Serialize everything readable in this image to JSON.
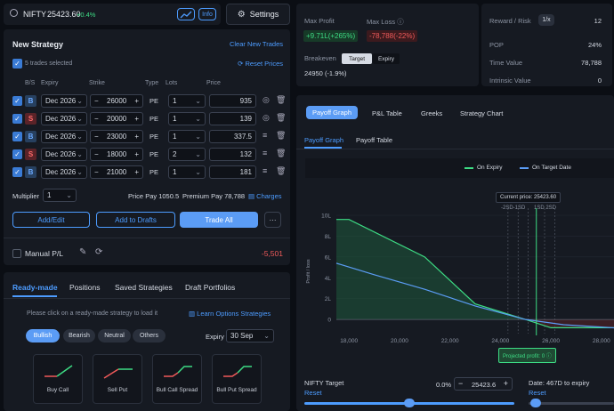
{
  "top": {
    "symbol": "NIFTY",
    "price": "25423.60",
    "change": "+0.4%",
    "info": "Info",
    "settings": "Settings"
  },
  "strategy": {
    "title": "New Strategy",
    "clear": "Clear New Trades",
    "selected": "5 trades selected",
    "reset": "Reset Prices",
    "headers": [
      "B/S",
      "Expiry",
      "Strike",
      "Lots",
      "Type",
      "Price"
    ],
    "rows": [
      {
        "bs": "B",
        "expiry": "Dec 2026",
        "strike": "26000",
        "type": "PE",
        "lots": "1",
        "price": "935"
      },
      {
        "bs": "S",
        "expiry": "Dec 2026",
        "strike": "20000",
        "type": "PE",
        "lots": "1",
        "price": "139"
      },
      {
        "bs": "B",
        "expiry": "Dec 2026",
        "strike": "23000",
        "type": "PE",
        "lots": "1",
        "price": "337.5"
      },
      {
        "bs": "S",
        "expiry": "Dec 2026",
        "strike": "18000",
        "type": "PE",
        "lots": "2",
        "price": "132"
      },
      {
        "bs": "B",
        "expiry": "Dec 2026",
        "strike": "21000",
        "type": "PE",
        "lots": "1",
        "price": "181"
      }
    ],
    "multiplier_label": "Multiplier",
    "multiplier": "1",
    "price_label": "Price",
    "price_pay": "Pay 1050.5",
    "premium_label": "Premium",
    "premium_pay": "Pay 78,788",
    "charges": "Charges",
    "add_edit": "Add/Edit",
    "add_drafts": "Add to Drafts",
    "trade_all": "Trade All",
    "more": "···",
    "manual_pl": "Manual P/L",
    "manual_value": "-5,501"
  },
  "readymade": {
    "tabs": [
      "Ready-made",
      "Positions",
      "Saved Strategies",
      "Draft Portfolios"
    ],
    "hint": "Please click on a ready-made strategy to load it",
    "learn": "Learn Options Strategies",
    "filters": [
      "Bullish",
      "Bearish",
      "Neutral",
      "Others"
    ],
    "expiry_label": "Expiry",
    "expiry": "30 Sep",
    "cards": [
      "Buy Call",
      "Sell Put",
      "Bull Call Spread",
      "Bull Put Spread"
    ]
  },
  "summary": {
    "max_profit_label": "Max Profit",
    "max_profit": "+9.71L(+265%)",
    "max_loss_label": "Max Loss",
    "max_loss": "-78,788(-22%)",
    "breakeven_label": "Breakeven",
    "target": "Target",
    "expiry": "Expiry",
    "breakeven": "24950 (-1.9%)",
    "rr_label": "Reward / Risk",
    "rr_btn": "1/x",
    "rr": "12",
    "pop_label": "POP",
    "pop": "24%",
    "tv_label": "Time Value",
    "tv": "78,788",
    "iv_label": "Intrinsic Value",
    "iv": "0"
  },
  "graph": {
    "tabs": [
      "Payoff Graph",
      "P&L Table",
      "Greeks",
      "Strategy Chart"
    ],
    "subtabs": [
      "Payoff Graph",
      "Payoff Table"
    ],
    "legend": [
      "On Expiry",
      "On Target Date"
    ],
    "current_price": "Current price: 25423.60",
    "sd_left": "-2SD-1SD",
    "sd_right": "1SD 2SD",
    "projected": "Projected profit: 0",
    "ylabel": "Profit / loss",
    "target_label": "NIFTY Target",
    "reset": "Reset",
    "target_pct": "0.0%",
    "target_value": "25423.6",
    "date_label": "Date: 467D to expiry",
    "date_reset": "Reset"
  },
  "chart_data": {
    "type": "line",
    "x_ticks": [
      "18,000",
      "20,000",
      "22,000",
      "24,000",
      "26,000",
      "28,000"
    ],
    "y_ticks": [
      "0",
      "2L",
      "4L",
      "6L",
      "8L",
      "10L"
    ],
    "xlim": [
      17500,
      28500
    ],
    "ylim": [
      -0.5,
      10
    ],
    "series": [
      {
        "name": "On Expiry",
        "color": "#3ddc84",
        "x": [
          17500,
          18000,
          21000,
          23000,
          25000,
          26000,
          28500
        ],
        "y": [
          9.6,
          9.6,
          6.0,
          1.5,
          0,
          -0.79,
          -0.79
        ]
      },
      {
        "name": "On Target Date",
        "color": "#5b9cf5",
        "x": [
          17500,
          19000,
          21000,
          23000,
          25000,
          26500,
          28500
        ],
        "y": [
          5.4,
          4.3,
          2.9,
          1.3,
          0.0,
          -0.5,
          -0.8
        ]
      }
    ]
  },
  "colors": {
    "green": "#3ddc84",
    "red": "#f05a5a",
    "blue": "#4d9cff",
    "accent": "#5b9cf5"
  }
}
